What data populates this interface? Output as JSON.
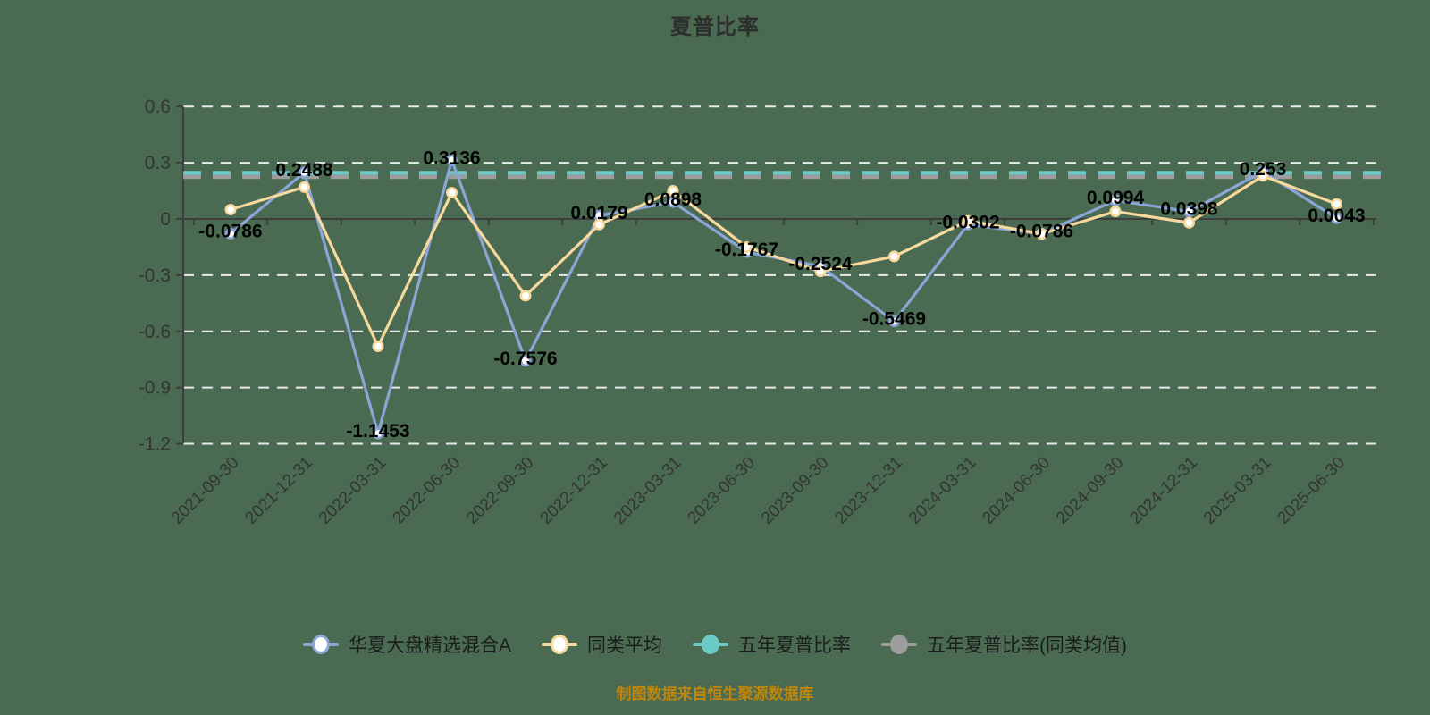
{
  "title": "夏普比率",
  "footer": "制图数据来自恒生聚源数据库",
  "colors": {
    "background": "#4a6b52",
    "axis": "#3d3f3e",
    "grid": "#e9e9e9",
    "tick_text": "#333534",
    "data_label": "#000000",
    "title_text": "#2d2f2e",
    "footer_text": "#bf860e",
    "fund_line": "#8aa5d6",
    "peer_line": "#f7d99e",
    "five_year_line": "#6bc9c7",
    "five_year_peer_line": "#9c9c9c",
    "marker_fill": "#ffffff"
  },
  "chart_data": {
    "type": "line",
    "title": "夏普比率",
    "xlabel": "",
    "ylabel": "",
    "ylim": [
      -1.2,
      0.6
    ],
    "grid": true,
    "grid_style": "dashed",
    "legend_position": "bottom",
    "y_ticks": [
      0.6,
      0.3,
      0,
      -0.3,
      -0.6,
      -0.9,
      -1.2
    ],
    "y_tick_labels": [
      "0.6",
      "0.3",
      "0",
      "-0.3",
      "-0.6",
      "-0.9",
      "-1.2"
    ],
    "categories": [
      "2021-09-30",
      "2021-12-31",
      "2022-03-31",
      "2022-06-30",
      "2022-09-30",
      "2022-12-31",
      "2023-03-31",
      "2023-06-30",
      "2023-09-30",
      "2023-12-31",
      "2024-03-31",
      "2024-06-30",
      "2024-09-30",
      "2024-12-31",
      "2025-03-31",
      "2025-06-30"
    ],
    "series": [
      {
        "name": "华夏大盘精选混合A",
        "kind": "line",
        "marker": "hollow",
        "color": "#8aa5d6",
        "values": [
          -0.0786,
          0.2488,
          -1.1453,
          0.3136,
          -0.7576,
          0.0179,
          0.0898,
          -0.1767,
          -0.2524,
          -0.5469,
          -0.0302,
          -0.0786,
          0.0994,
          0.0398,
          0.253,
          0.0043
        ],
        "labels": [
          "-0.0786",
          "0.2488",
          "-1.1453",
          "0.3136",
          "-0.7576",
          "0.0179",
          "0.0898",
          "-0.1767",
          "-0.2524",
          "-0.5469",
          "-0.0302",
          "-0.0786",
          "0.0994",
          "0.0398",
          "0.253",
          "0.0043"
        ]
      },
      {
        "name": "同类平均",
        "kind": "line",
        "marker": "hollow",
        "color": "#f7d99e",
        "values": [
          0.05,
          0.17,
          -0.68,
          0.14,
          -0.41,
          -0.03,
          0.15,
          -0.15,
          -0.28,
          -0.2,
          -0.01,
          -0.08,
          0.04,
          -0.02,
          0.23,
          0.08
        ],
        "labels": []
      },
      {
        "name": "五年夏普比率",
        "kind": "refline",
        "marker": "solid",
        "color": "#6bc9c7",
        "value": 0.246
      },
      {
        "name": "五年夏普比率(同类均值)",
        "kind": "refline",
        "marker": "solid",
        "color": "#9c9c9c",
        "value": 0.224
      }
    ]
  }
}
